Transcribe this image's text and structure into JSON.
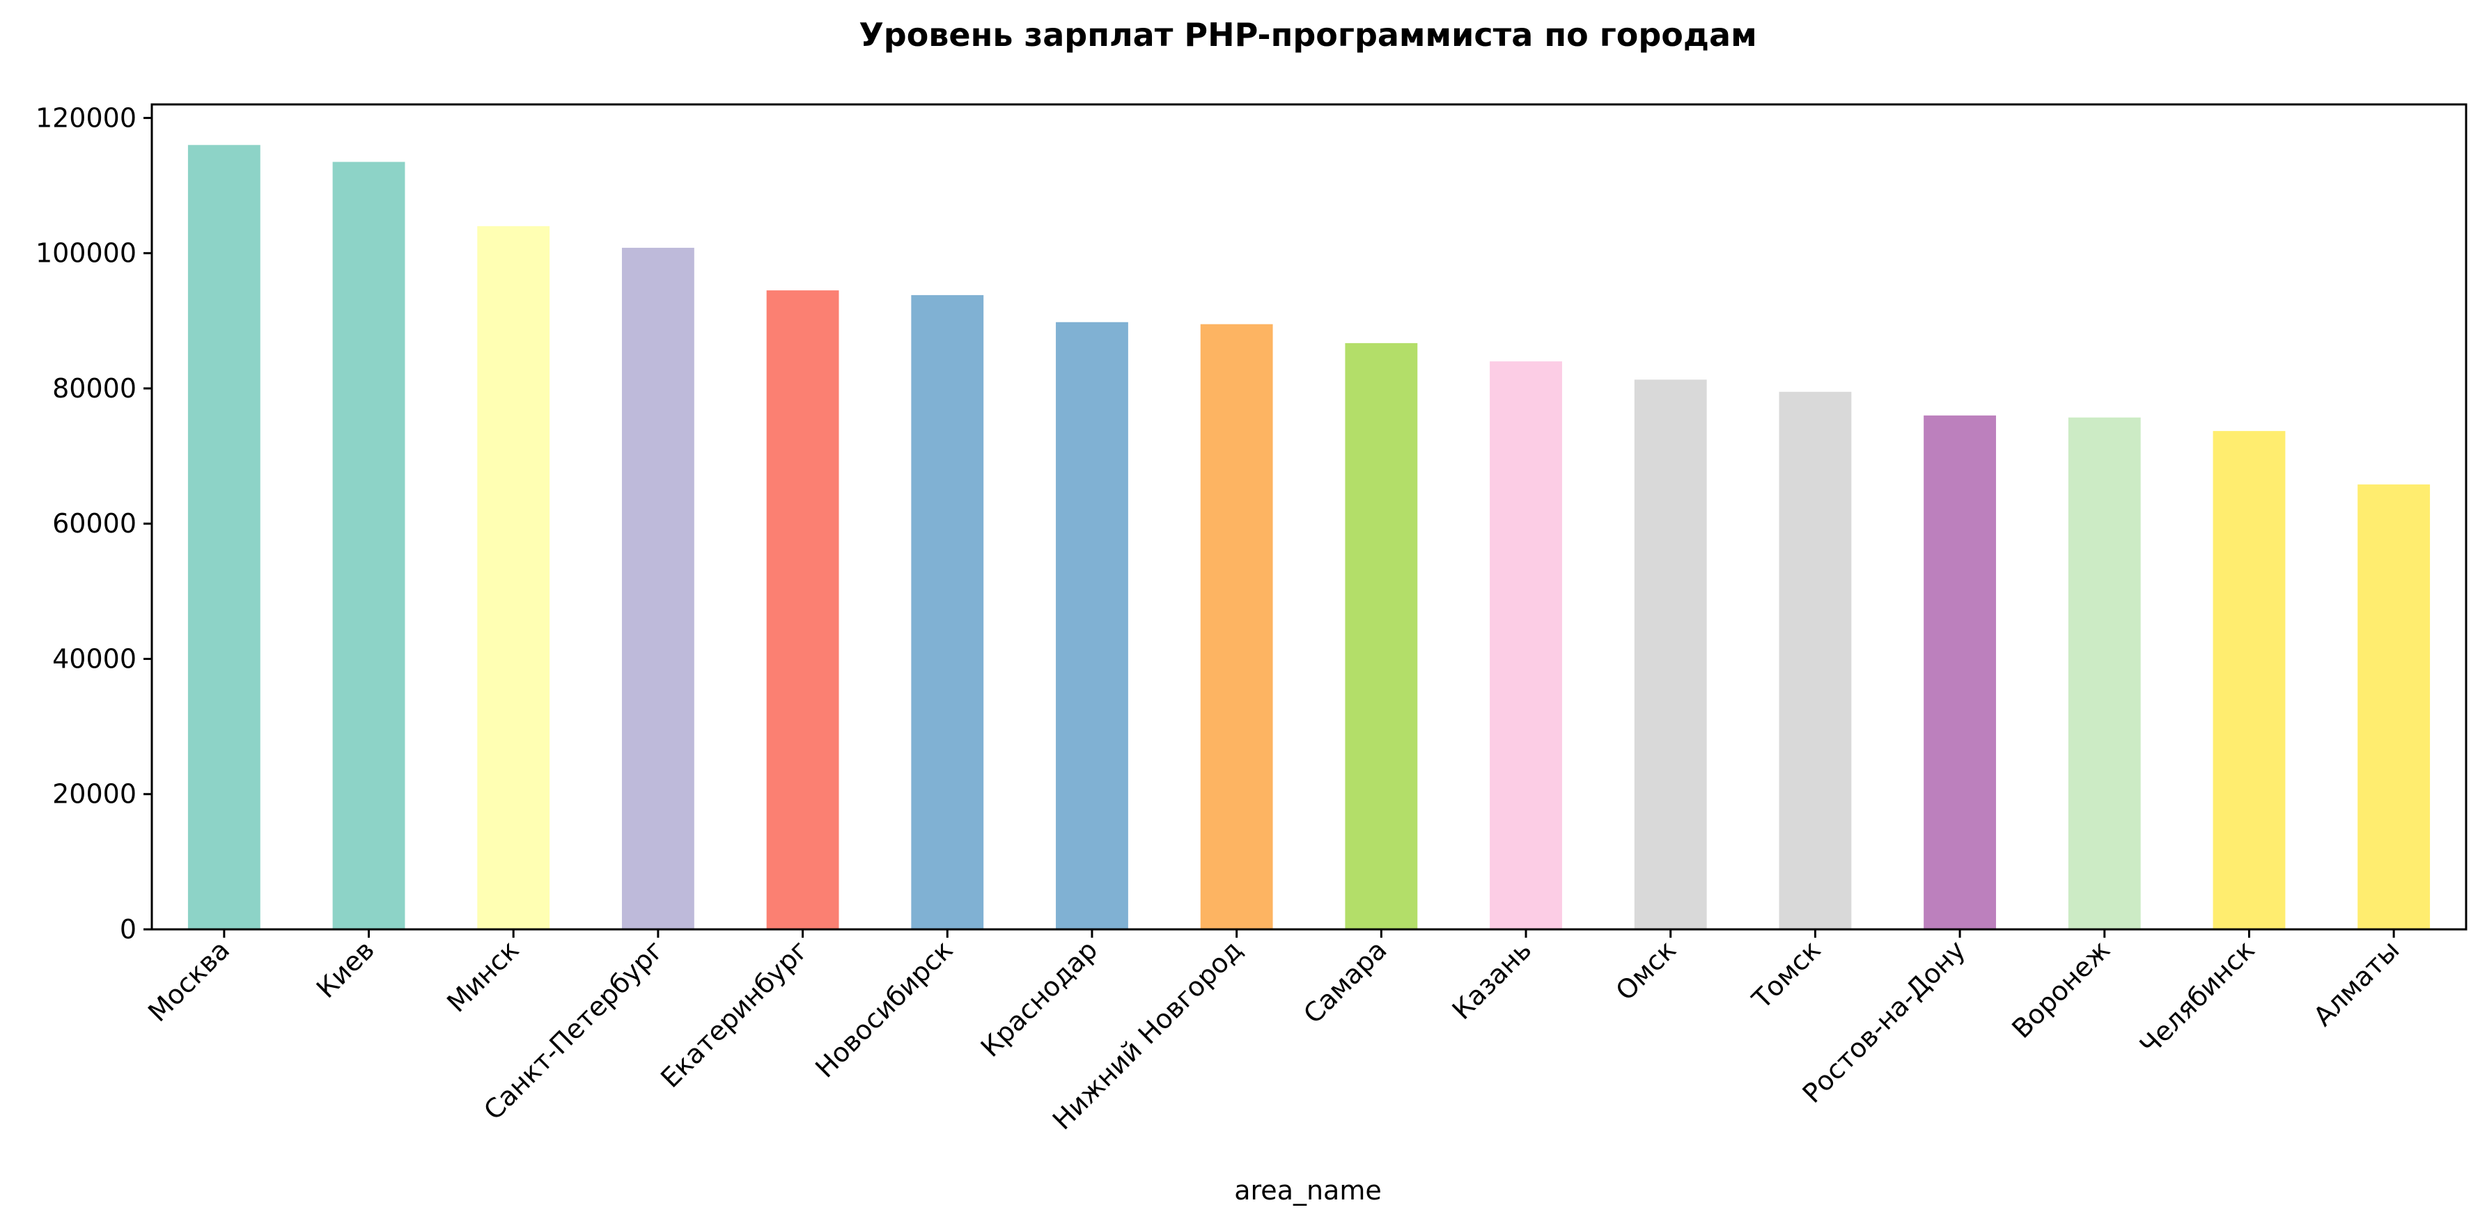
{
  "chart_data": {
    "type": "bar",
    "title": "Уровень зарплат PHP-программиста по городам",
    "xlabel": "area_name",
    "ylabel": "",
    "ylim": [
      0,
      122000
    ],
    "yticks": [
      0,
      20000,
      40000,
      60000,
      80000,
      100000,
      120000
    ],
    "grid": false,
    "legend": "none",
    "categories": [
      "Москва",
      "Киев",
      "Минск",
      "Санкт-Петербург",
      "Екатеринбург",
      "Новосибирск",
      "Краснодар",
      "Нижний Новгород",
      "Самара",
      "Казань",
      "Омск",
      "Томск",
      "Ростов-на-Дону",
      "Воронеж",
      "Челябинск",
      "Алматы"
    ],
    "values": [
      116000,
      113500,
      104000,
      100800,
      94500,
      93800,
      89800,
      89500,
      86700,
      84000,
      81300,
      79500,
      76000,
      75700,
      73700,
      65800
    ],
    "colors": [
      "#8dd3c7",
      "#8dd3c7",
      "#ffffb3",
      "#bebada",
      "#fb8072",
      "#80b1d3",
      "#80b1d3",
      "#fdb462",
      "#b3de69",
      "#fccde5",
      "#d9d9d9",
      "#d9d9d9",
      "#bc80bd",
      "#ccebc5",
      "#ffed6f",
      "#ffed6f"
    ]
  }
}
